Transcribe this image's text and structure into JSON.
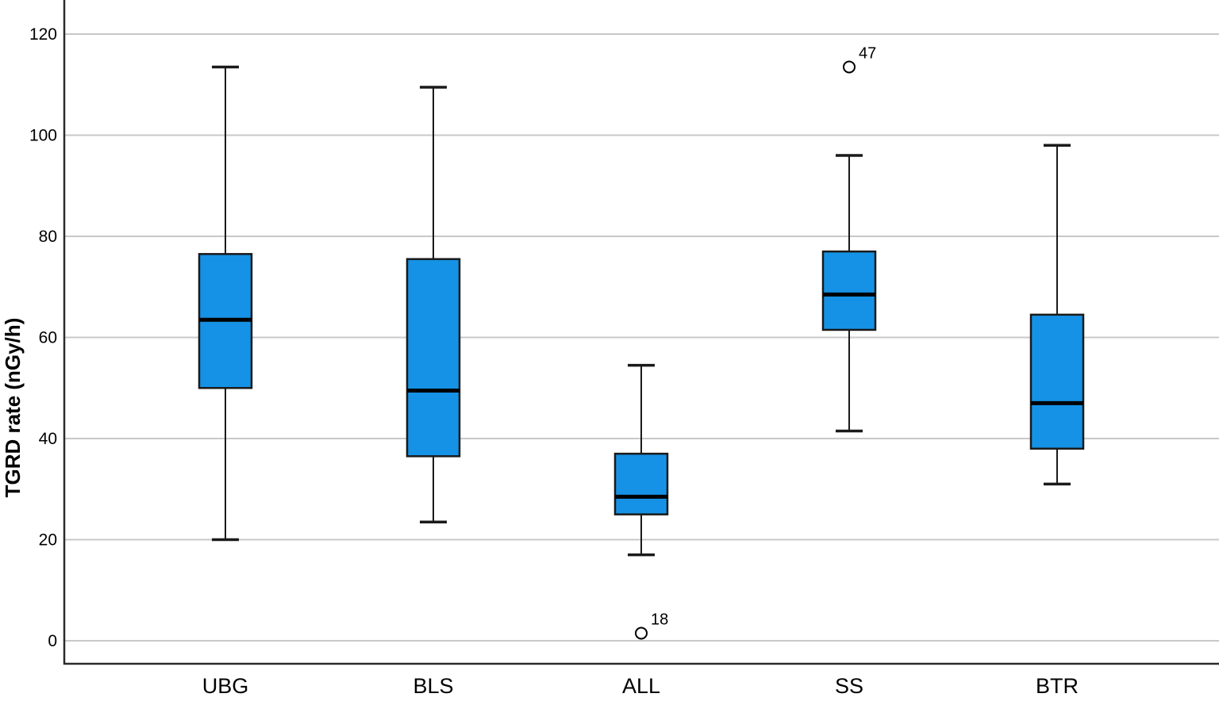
{
  "chart_data": {
    "type": "boxplot",
    "title": "",
    "xlabel": "",
    "ylabel": "TGRD rate (nGy/h)",
    "categories": [
      "UBG",
      "BLS",
      "ALL",
      "SS",
      "BTR"
    ],
    "yticks": [
      0,
      20,
      40,
      60,
      80,
      100,
      120
    ],
    "ylim": [
      -4.5,
      126.7
    ],
    "grid": true,
    "legend": false,
    "series": [
      {
        "category": "UBG",
        "whisker_low": 20,
        "q1": 50,
        "median": 63.5,
        "q3": 76.5,
        "whisker_high": 113.5,
        "outliers": []
      },
      {
        "category": "BLS",
        "whisker_low": 23.5,
        "q1": 36.5,
        "median": 49.5,
        "q3": 75.5,
        "whisker_high": 109.5,
        "outliers": []
      },
      {
        "category": "ALL",
        "whisker_low": 17,
        "q1": 25,
        "median": 28.5,
        "q3": 37,
        "whisker_high": 54.5,
        "outliers": [
          {
            "value": 1.5,
            "label": "18"
          }
        ]
      },
      {
        "category": "SS",
        "whisker_low": 41.5,
        "q1": 61.5,
        "median": 68.5,
        "q3": 77,
        "whisker_high": 96,
        "outliers": [
          {
            "value": 113.5,
            "label": "47"
          }
        ]
      },
      {
        "category": "BTR",
        "whisker_low": 31,
        "q1": 38,
        "median": 47,
        "q3": 64.5,
        "whisker_high": 98,
        "outliers": []
      }
    ],
    "colors": {
      "box_fill": "#1592E5",
      "box_border": "#1a1a1a",
      "median": "#000000",
      "whisker": "#1a1a1a",
      "outlier_stroke": "#000000",
      "outlier_fill": "#ffffff",
      "gridline": "#c8c8c8",
      "axis": "#2b2b2b",
      "background": "#ffffff"
    }
  }
}
